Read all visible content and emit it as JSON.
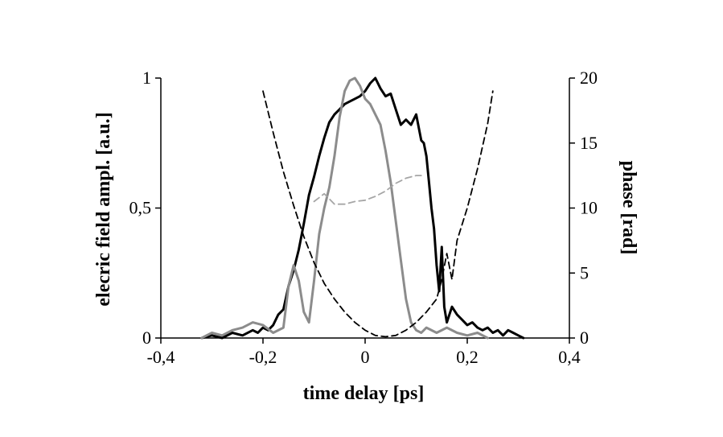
{
  "chart_data": {
    "type": "line",
    "xlabel": "time delay [ps]",
    "ylabel": "elecric field ampl. [a.u.]",
    "y2label": "phase [rad]",
    "xlim": [
      -0.4,
      0.4
    ],
    "ylim": [
      0,
      1
    ],
    "y2lim": [
      0,
      20
    ],
    "x_ticks": [
      "-0,4",
      "-0,2",
      "0",
      "0,2",
      "0,4"
    ],
    "y_ticks": [
      "0",
      "0,5",
      "1"
    ],
    "y2_ticks": [
      "0",
      "5",
      "10",
      "15",
      "20"
    ],
    "grid": false,
    "legend": "none",
    "series": [
      {
        "axis": "left",
        "color": "#000000",
        "style": "solid",
        "x": [
          -0.32,
          -0.3,
          -0.28,
          -0.26,
          -0.24,
          -0.22,
          -0.21,
          -0.2,
          -0.19,
          -0.18,
          -0.17,
          -0.16,
          -0.15,
          -0.14,
          -0.13,
          -0.12,
          -0.11,
          -0.1,
          -0.09,
          -0.08,
          -0.07,
          -0.06,
          -0.05,
          -0.04,
          -0.03,
          -0.02,
          -0.01,
          0.0,
          0.01,
          0.02,
          0.03,
          0.04,
          0.05,
          0.06,
          0.07,
          0.08,
          0.09,
          0.1,
          0.11,
          0.115,
          0.12,
          0.125,
          0.13,
          0.135,
          0.14,
          0.145,
          0.15,
          0.155,
          0.16,
          0.17,
          0.18,
          0.19,
          0.2,
          0.21,
          0.22,
          0.23,
          0.24,
          0.25,
          0.26,
          0.27,
          0.28,
          0.29,
          0.3,
          0.31
        ],
        "values": [
          0.0,
          0.01,
          0.0,
          0.02,
          0.01,
          0.03,
          0.02,
          0.04,
          0.03,
          0.05,
          0.09,
          0.11,
          0.2,
          0.26,
          0.34,
          0.44,
          0.55,
          0.62,
          0.7,
          0.77,
          0.83,
          0.86,
          0.88,
          0.9,
          0.91,
          0.92,
          0.93,
          0.95,
          0.98,
          1.0,
          0.96,
          0.93,
          0.94,
          0.88,
          0.82,
          0.84,
          0.82,
          0.86,
          0.76,
          0.75,
          0.7,
          0.6,
          0.5,
          0.42,
          0.28,
          0.18,
          0.35,
          0.12,
          0.06,
          0.12,
          0.09,
          0.07,
          0.05,
          0.06,
          0.04,
          0.03,
          0.04,
          0.02,
          0.03,
          0.01,
          0.03,
          0.02,
          0.01,
          0.0
        ]
      },
      {
        "axis": "left",
        "color": "#8c8c8c",
        "style": "solid",
        "x": [
          -0.32,
          -0.3,
          -0.28,
          -0.26,
          -0.24,
          -0.22,
          -0.2,
          -0.18,
          -0.16,
          -0.15,
          -0.14,
          -0.13,
          -0.12,
          -0.11,
          -0.1,
          -0.09,
          -0.08,
          -0.07,
          -0.06,
          -0.05,
          -0.04,
          -0.03,
          -0.02,
          -0.01,
          0.0,
          0.01,
          0.02,
          0.03,
          0.04,
          0.05,
          0.06,
          0.07,
          0.08,
          0.09,
          0.1,
          0.11,
          0.12,
          0.14,
          0.16,
          0.18,
          0.2,
          0.22,
          0.24
        ],
        "values": [
          0.0,
          0.02,
          0.01,
          0.03,
          0.04,
          0.06,
          0.05,
          0.02,
          0.04,
          0.2,
          0.28,
          0.22,
          0.1,
          0.06,
          0.22,
          0.4,
          0.5,
          0.58,
          0.7,
          0.85,
          0.95,
          0.99,
          1.0,
          0.97,
          0.92,
          0.9,
          0.86,
          0.82,
          0.72,
          0.6,
          0.45,
          0.3,
          0.15,
          0.06,
          0.03,
          0.02,
          0.04,
          0.02,
          0.04,
          0.02,
          0.01,
          0.02,
          0.0
        ]
      },
      {
        "axis": "right",
        "color": "#000000",
        "style": "dashed",
        "x": [
          -0.2,
          -0.18,
          -0.16,
          -0.14,
          -0.12,
          -0.1,
          -0.08,
          -0.06,
          -0.04,
          -0.02,
          0.0,
          0.02,
          0.04,
          0.06,
          0.08,
          0.1,
          0.12,
          0.14,
          0.15,
          0.16,
          0.17,
          0.18,
          0.2,
          0.22,
          0.24,
          0.25
        ],
        "values": [
          19.0,
          15.8,
          12.8,
          10.2,
          7.8,
          5.8,
          4.2,
          3.0,
          2.0,
          1.2,
          0.6,
          0.2,
          0.1,
          0.2,
          0.6,
          1.2,
          2.0,
          3.0,
          4.5,
          6.5,
          4.5,
          7.5,
          10.0,
          13.0,
          16.5,
          19.0
        ]
      },
      {
        "axis": "right",
        "color": "#a6a6a6",
        "style": "dashed",
        "x": [
          -0.1,
          -0.08,
          -0.06,
          -0.04,
          -0.02,
          0.0,
          0.02,
          0.04,
          0.06,
          0.08,
          0.1,
          0.11
        ],
        "values": [
          10.5,
          11.1,
          10.3,
          10.3,
          10.5,
          10.6,
          10.9,
          11.3,
          11.9,
          12.3,
          12.5,
          12.5
        ]
      }
    ]
  }
}
